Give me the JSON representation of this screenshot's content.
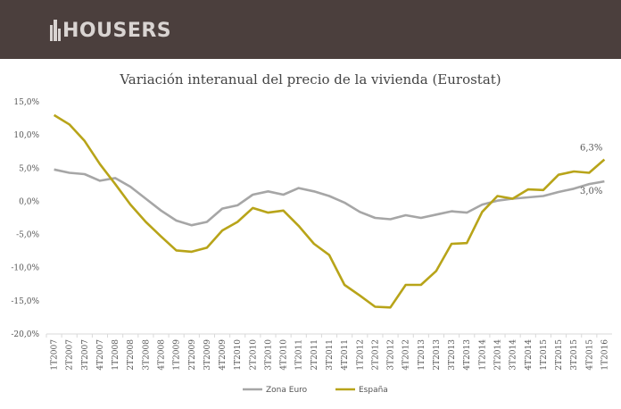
{
  "header": {
    "brand": "HOUSERS"
  },
  "chart_data": {
    "type": "line",
    "title": "Variación interanual del precio de la vivienda (Eurostat)",
    "xlabel": "",
    "ylabel": "",
    "ylim": [
      -20,
      15
    ],
    "yticks": [
      15,
      10,
      5,
      0,
      -5,
      -10,
      -15,
      -20
    ],
    "ytick_labels": [
      "15,0%",
      "10,0%",
      "5,0%",
      "0,0%",
      "-5,0%",
      "-10,0%",
      "-15,0%",
      "-20,0%"
    ],
    "grid": false,
    "legend_position": "bottom",
    "categories": [
      "1T2007",
      "2T2007",
      "3T2007",
      "4T2007",
      "1T2008",
      "2T2008",
      "3T2008",
      "4T2008",
      "1T2009",
      "2T2009",
      "3T2009",
      "4T2009",
      "1T2010",
      "2T2010",
      "3T2010",
      "4T2010",
      "1T2011",
      "2T2011",
      "3T2011",
      "4T2011",
      "1T2012",
      "2T2012",
      "3T2012",
      "4T2012",
      "1T2013",
      "2T2013",
      "3T2013",
      "4T2013",
      "1T2014",
      "2T2014",
      "3T2014",
      "4T2014",
      "1T2015",
      "2T2015",
      "3T2015",
      "4T2015",
      "1T2016"
    ],
    "series": [
      {
        "name": "Zona Euro",
        "color": "#a6a6a6",
        "values": [
          4.8,
          4.3,
          4.1,
          3.1,
          3.5,
          2.2,
          0.4,
          -1.4,
          -2.9,
          -3.6,
          -3.1,
          -1.1,
          -0.6,
          1.0,
          1.5,
          1.0,
          2.0,
          1.5,
          0.8,
          -0.2,
          -1.6,
          -2.5,
          -2.7,
          -2.1,
          -2.5,
          -2.0,
          -1.5,
          -1.7,
          -0.5,
          0.1,
          0.4,
          0.6,
          0.8,
          1.4,
          1.9,
          2.6,
          3.0
        ]
      },
      {
        "name": "España",
        "color": "#b8a419",
        "values": [
          13.0,
          11.6,
          9.1,
          5.6,
          2.6,
          -0.5,
          -3.1,
          -5.3,
          -7.4,
          -7.6,
          -7.0,
          -4.4,
          -3.1,
          -1.0,
          -1.7,
          -1.4,
          -3.7,
          -6.4,
          -8.1,
          -12.6,
          -14.2,
          -15.9,
          -16.0,
          -12.6,
          -12.6,
          -10.5,
          -6.4,
          -6.3,
          -1.6,
          0.8,
          0.4,
          1.8,
          1.7,
          4.0,
          4.5,
          4.3,
          6.3
        ]
      }
    ],
    "annotations": [
      {
        "series": "España",
        "label": "6,3%"
      },
      {
        "series": "Zona Euro",
        "label": "3,0%"
      }
    ]
  }
}
